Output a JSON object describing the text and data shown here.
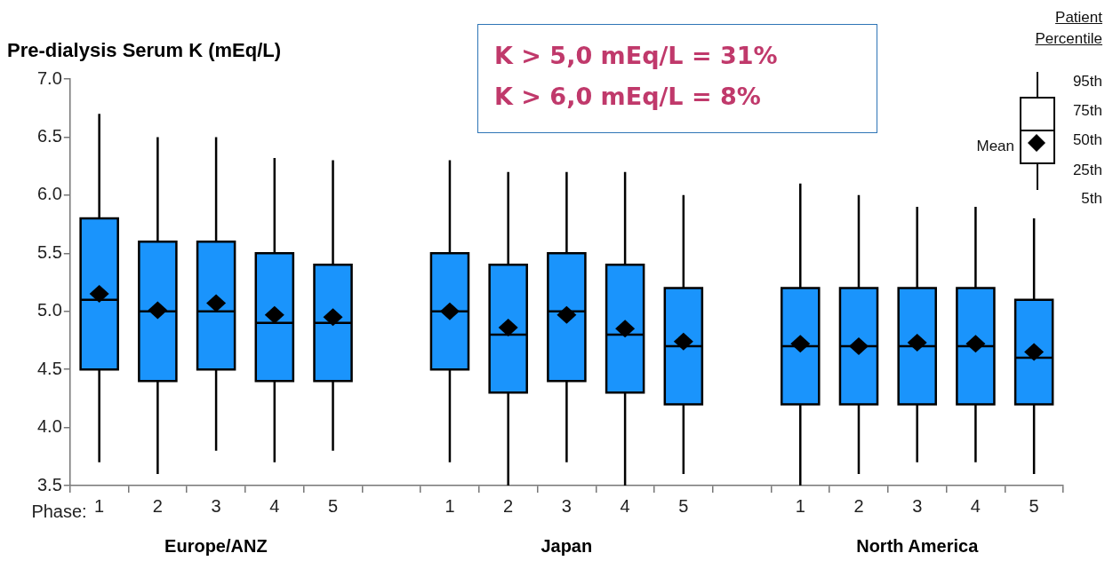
{
  "chart_data": {
    "type": "box",
    "title": "Pre-dialysis Serum K (mEq/L)",
    "xlabel": "Phase:",
    "categories": [
      "1",
      "2",
      "3",
      "4",
      "5",
      null,
      "1",
      "2",
      "3",
      "4",
      "5",
      null,
      "1",
      "2",
      "3",
      "4",
      "5"
    ],
    "color": "#1a94fc",
    "boxes": [
      {
        "low": 3.7,
        "q1": 4.5,
        "median": 5.1,
        "q3": 5.8,
        "high": 6.7,
        "mean": 5.15
      },
      {
        "low": 3.6,
        "q1": 4.4,
        "median": 5.0,
        "q3": 5.6,
        "high": 6.5,
        "mean": 5.01
      },
      {
        "low": 3.8,
        "q1": 4.5,
        "median": 5.0,
        "q3": 5.6,
        "high": 6.5,
        "mean": 5.07
      },
      {
        "low": 3.7,
        "q1": 4.4,
        "median": 4.9,
        "q3": 5.5,
        "high": 6.32,
        "mean": 4.97
      },
      {
        "low": 3.8,
        "q1": 4.4,
        "median": 4.9,
        "q3": 5.4,
        "high": 6.3,
        "mean": 4.95
      },
      null,
      {
        "low": 3.7,
        "q1": 4.5,
        "median": 5.0,
        "q3": 5.5,
        "high": 6.3,
        "mean": 5.0
      },
      {
        "low": 3.5,
        "q1": 4.3,
        "median": 4.8,
        "q3": 5.4,
        "high": 6.2,
        "mean": 4.86
      },
      {
        "low": 3.7,
        "q1": 4.4,
        "median": 5.0,
        "q3": 5.5,
        "high": 6.2,
        "mean": 4.97
      },
      {
        "low": 3.5,
        "q1": 4.3,
        "median": 4.8,
        "q3": 5.4,
        "high": 6.2,
        "mean": 4.85
      },
      {
        "low": 3.6,
        "q1": 4.2,
        "median": 4.7,
        "q3": 5.2,
        "high": 6.0,
        "mean": 4.74
      },
      null,
      {
        "low": 3.5,
        "q1": 4.2,
        "median": 4.7,
        "q3": 5.2,
        "high": 6.1,
        "mean": 4.72
      },
      {
        "low": 3.6,
        "q1": 4.2,
        "median": 4.7,
        "q3": 5.2,
        "high": 6.0,
        "mean": 4.7
      },
      {
        "low": 3.7,
        "q1": 4.2,
        "median": 4.7,
        "q3": 5.2,
        "high": 5.9,
        "mean": 4.73
      },
      {
        "low": 3.7,
        "q1": 4.2,
        "median": 4.7,
        "q3": 5.2,
        "high": 5.9,
        "mean": 4.72
      },
      {
        "low": 3.6,
        "q1": 4.2,
        "median": 4.6,
        "q3": 5.1,
        "high": 5.8,
        "mean": 4.65
      }
    ],
    "ylim": [
      3.5,
      7.0
    ],
    "yticks": [
      {
        "value": 3.5,
        "label": "3.5"
      },
      {
        "value": 4,
        "label": "4.0"
      },
      {
        "value": 4.5,
        "label": "4.5"
      },
      {
        "value": 5,
        "label": "5.0"
      },
      {
        "value": 5.5,
        "label": "5.5"
      },
      {
        "value": 6,
        "label": "6.0"
      },
      {
        "value": 6.5,
        "label": "6.5"
      },
      {
        "value": 7,
        "label": "7.0"
      }
    ],
    "legend_title": "Patient Percentile",
    "annotations": [
      "Europe/ANZ",
      "Japan",
      "North America",
      "K > 5,0 mEq/L = 31%",
      "K > 6,0 mEq/L = 8%",
      "95th",
      "75th",
      "50th",
      "25th",
      "5th",
      "Mean"
    ]
  }
}
